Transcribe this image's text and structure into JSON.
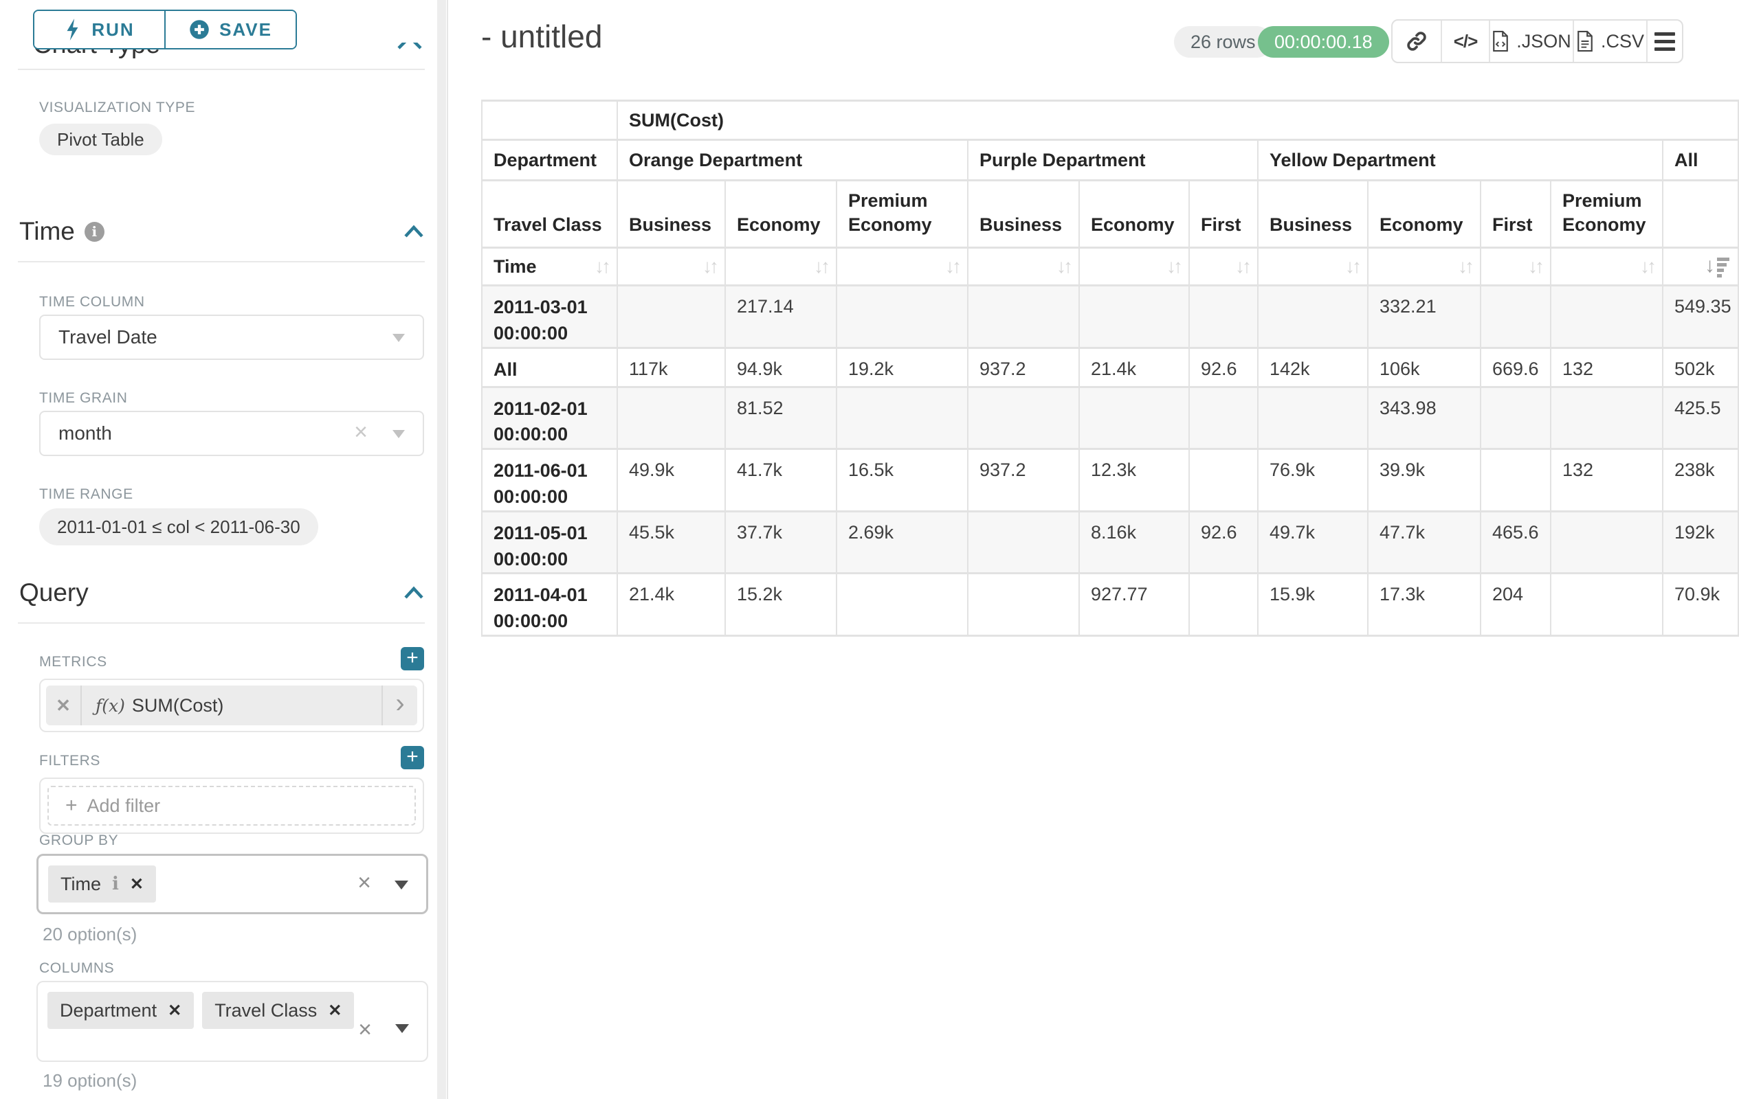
{
  "colors": {
    "accent": "#2b7b96",
    "timer_green": "#76c08d"
  },
  "toolbar": {
    "run_label": "RUN",
    "save_label": "SAVE"
  },
  "sidebar": {
    "chart_type_title": "Chart Type",
    "viz_label": "VISUALIZATION TYPE",
    "viz_value": "Pivot Table",
    "time": {
      "title": "Time",
      "time_column_label": "TIME COLUMN",
      "time_column_value": "Travel Date",
      "time_grain_label": "TIME GRAIN",
      "time_grain_value": "month",
      "time_range_label": "TIME RANGE",
      "time_range_value": "2011-01-01 ≤ col < 2011-06-30"
    },
    "query": {
      "title": "Query",
      "metrics_label": "METRICS",
      "metric_prefix": "ƒ(x)",
      "metric_value": "SUM(Cost)",
      "filters_label": "FILTERS",
      "add_filter_label": "Add filter",
      "group_by_label": "GROUP BY",
      "group_by_chips": [
        {
          "label": "Time"
        }
      ],
      "group_by_options": "20 option(s)",
      "columns_label": "COLUMNS",
      "columns_chips": [
        {
          "label": "Department"
        },
        {
          "label": "Travel Class"
        }
      ],
      "columns_options": "19 option(s)"
    }
  },
  "header": {
    "title": "- untitled",
    "rows_badge": "26 rows",
    "timer": "00:00:00.18",
    "json_label": ".JSON",
    "csv_label": ".CSV"
  },
  "chart_data": {
    "type": "table",
    "metric_label": "SUM(Cost)",
    "column_axis": "Department",
    "column_axis_2": "Travel Class",
    "row_axis": "Time",
    "column_groups": [
      {
        "label": "Orange Department",
        "children": [
          "Business",
          "Economy",
          "Premium Economy"
        ]
      },
      {
        "label": "Purple Department",
        "children": [
          "Business",
          "Economy",
          "First"
        ]
      },
      {
        "label": "Yellow Department",
        "children": [
          "Business",
          "Economy",
          "First",
          "Premium Economy"
        ]
      },
      {
        "label": "All",
        "children": [
          ""
        ]
      }
    ],
    "rows": [
      {
        "label": "2011-03-01 00:00:00",
        "values": [
          "",
          "217.14",
          "",
          "",
          "",
          "",
          "",
          "332.21",
          "",
          "",
          "549.35"
        ]
      },
      {
        "label": "All",
        "values": [
          "117k",
          "94.9k",
          "19.2k",
          "937.2",
          "21.4k",
          "92.6",
          "142k",
          "106k",
          "669.6",
          "132",
          "502k"
        ]
      },
      {
        "label": "2011-02-01 00:00:00",
        "values": [
          "",
          "81.52",
          "",
          "",
          "",
          "",
          "",
          "343.98",
          "",
          "",
          "425.5"
        ]
      },
      {
        "label": "2011-06-01 00:00:00",
        "values": [
          "49.9k",
          "41.7k",
          "16.5k",
          "937.2",
          "12.3k",
          "",
          "76.9k",
          "39.9k",
          "",
          "132",
          "238k"
        ]
      },
      {
        "label": "2011-05-01 00:00:00",
        "values": [
          "45.5k",
          "37.7k",
          "2.69k",
          "",
          "8.16k",
          "92.6",
          "49.7k",
          "47.7k",
          "465.6",
          "",
          "192k"
        ]
      },
      {
        "label": "2011-04-01 00:00:00",
        "values": [
          "21.4k",
          "15.2k",
          "",
          "",
          "927.77",
          "",
          "15.9k",
          "17.3k",
          "204",
          "",
          "70.9k"
        ]
      }
    ]
  }
}
